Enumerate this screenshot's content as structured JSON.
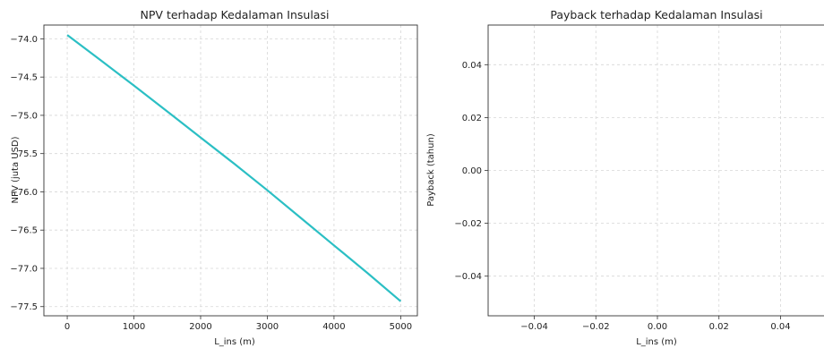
{
  "chart_data": [
    {
      "type": "line",
      "title": "NPV terhadap Kedalaman Insulasi",
      "xlabel": "L_ins (m)",
      "ylabel": "NPV (juta USD)",
      "xlim": [
        -350,
        5250
      ],
      "ylim": [
        -77.62,
        -73.82
      ],
      "xticks": [
        0,
        1000,
        2000,
        3000,
        4000,
        5000
      ],
      "xtick_labels": [
        "0",
        "1000",
        "2000",
        "3000",
        "4000",
        "5000"
      ],
      "yticks": [
        -74.0,
        -74.5,
        -75.0,
        -75.5,
        -76.0,
        -76.5,
        -77.0,
        -77.5
      ],
      "ytick_labels": [
        "−74.0",
        "−74.5",
        "−75.0",
        "−75.5",
        "−76.0",
        "−76.5",
        "−77.0",
        "−77.5"
      ],
      "grid": true,
      "series": [
        {
          "color": "#2bbfc4",
          "x": [
            0,
            500,
            1000,
            1500,
            2000,
            2500,
            3000,
            3500,
            4000,
            4500,
            5000
          ],
          "y": [
            -73.95,
            -74.28,
            -74.61,
            -74.95,
            -75.29,
            -75.63,
            -75.98,
            -76.34,
            -76.7,
            -77.06,
            -77.43
          ]
        }
      ]
    },
    {
      "type": "line",
      "title": "Payback terhadap Kedalaman Insulasi",
      "xlabel": "L_ins (m)",
      "ylabel": "Payback (tahun)",
      "xlim": [
        -0.055,
        0.055
      ],
      "ylim": [
        -0.055,
        0.055
      ],
      "xticks": [
        -0.04,
        -0.02,
        0.0,
        0.02,
        0.04
      ],
      "xtick_labels": [
        "−0.04",
        "−0.02",
        "0.00",
        "0.02",
        "0.04"
      ],
      "yticks": [
        0.04,
        0.02,
        0.0,
        -0.02,
        -0.04
      ],
      "ytick_labels": [
        "0.04",
        "0.02",
        "0.00",
        "−0.02",
        "−0.04"
      ],
      "grid": true,
      "series": []
    }
  ]
}
